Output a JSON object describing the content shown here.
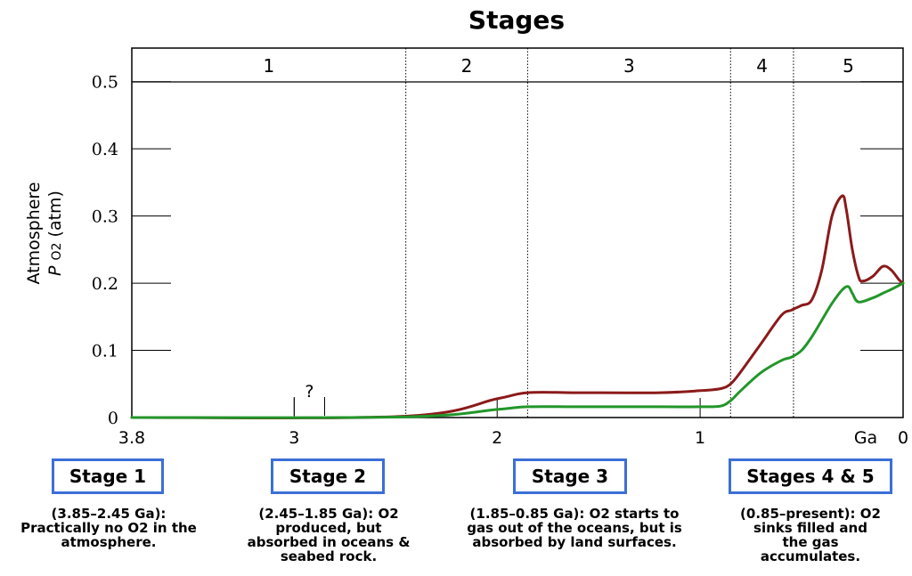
{
  "chart_data": {
    "type": "line",
    "title": "Stages",
    "ylabel_line1": "Atmosphere",
    "ylabel_p": "P",
    "ylabel_sub": "O2",
    "ylabel_unit": "(atm)",
    "xlabel": "Ga",
    "xlim": [
      3.8,
      0
    ],
    "ylim": [
      0,
      0.55
    ],
    "y_ticks": [
      {
        "value": 0,
        "label": "0"
      },
      {
        "value": 0.1,
        "label": "0.1"
      },
      {
        "value": 0.2,
        "label": "0.2"
      },
      {
        "value": 0.3,
        "label": "0.3"
      },
      {
        "value": 0.4,
        "label": "0.4"
      },
      {
        "value": 0.5,
        "label": "0.5"
      }
    ],
    "x_ticks": [
      {
        "value": 3.8,
        "label": "3.8"
      },
      {
        "value": 3,
        "label": "3"
      },
      {
        "value": 2,
        "label": "2"
      },
      {
        "value": 1,
        "label": "1"
      },
      {
        "value": 0,
        "label": "0"
      }
    ],
    "stage_boundaries": [
      2.45,
      1.85,
      0.85,
      0.54
    ],
    "stages": [
      {
        "label": "1",
        "from": 3.8,
        "to": 2.45
      },
      {
        "label": "2",
        "from": 2.45,
        "to": 1.85
      },
      {
        "label": "3",
        "from": 1.85,
        "to": 0.85
      },
      {
        "label": "4",
        "from": 0.85,
        "to": 0.54
      },
      {
        "label": "5",
        "from": 0.54,
        "to": 0
      }
    ],
    "uncertainty": {
      "label": "?",
      "from": 3.0,
      "to": 2.85
    },
    "series": [
      {
        "color": "#8b1a1a",
        "x": [
          3.8,
          2.45,
          2.0,
          1.85,
          1.6,
          1.2,
          1.0,
          0.9,
          0.85,
          0.8,
          0.7,
          0.6,
          0.55,
          0.5,
          0.45,
          0.4,
          0.35,
          0.3,
          0.28,
          0.25,
          0.22,
          0.2,
          0.15,
          0.1,
          0.06,
          0.02,
          0
        ],
        "y": [
          0,
          0.002,
          0.028,
          0.037,
          0.037,
          0.037,
          0.04,
          0.043,
          0.05,
          0.068,
          0.11,
          0.152,
          0.16,
          0.167,
          0.175,
          0.22,
          0.3,
          0.33,
          0.31,
          0.25,
          0.21,
          0.203,
          0.21,
          0.225,
          0.22,
          0.205,
          0.2
        ]
      },
      {
        "color": "#22962a",
        "x": [
          3.8,
          2.45,
          2.0,
          1.85,
          1.6,
          1.2,
          1.0,
          0.9,
          0.85,
          0.8,
          0.7,
          0.6,
          0.55,
          0.5,
          0.45,
          0.4,
          0.35,
          0.3,
          0.27,
          0.25,
          0.22,
          0.15,
          0.1,
          0.05,
          0
        ],
        "y": [
          0,
          0.001,
          0.012,
          0.016,
          0.016,
          0.016,
          0.016,
          0.017,
          0.025,
          0.04,
          0.067,
          0.085,
          0.09,
          0.1,
          0.12,
          0.145,
          0.17,
          0.19,
          0.195,
          0.185,
          0.172,
          0.178,
          0.185,
          0.192,
          0.2
        ]
      }
    ]
  },
  "stage_cards": [
    {
      "title": "Stage 1",
      "desc": "(3.85–2.45 Ga):\nPractically no O2 in the\natmosphere."
    },
    {
      "title": "Stage 2",
      "desc": "(2.45–1.85 Ga): O2\nproduced, but\nabsorbed in oceans &\nseabed rock."
    },
    {
      "title": "Stage 3",
      "desc": "(1.85–0.85 Ga): O2 starts to\ngas out of the oceans, but is\nabsorbed by land surfaces."
    },
    {
      "title": "Stages 4 & 5",
      "desc": "(0.85–present): O2\nsinks filled and\nthe gas\naccumulates."
    }
  ]
}
